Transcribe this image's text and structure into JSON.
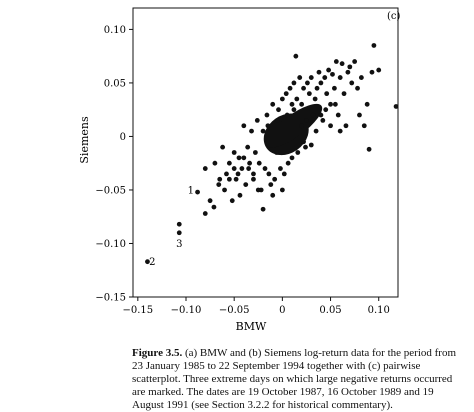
{
  "chart_data": {
    "type": "scatter",
    "panel_label": "(c)",
    "xlabel": "BMW",
    "ylabel": "Siemens",
    "xlim": [
      -0.155,
      0.12
    ],
    "ylim": [
      -0.15,
      0.12
    ],
    "xticks": [
      -0.15,
      -0.1,
      -0.05,
      0,
      0.05,
      0.1
    ],
    "xtick_labels": [
      "−0.15",
      "−0.10",
      "−0.05",
      "0",
      "0.05",
      "0.10"
    ],
    "yticks": [
      -0.15,
      -0.1,
      -0.05,
      0,
      0.05,
      0.1
    ],
    "ytick_labels": [
      "−0.15",
      "−0.10",
      "−0.05",
      "0",
      "0.05",
      "0.10"
    ],
    "grid": false,
    "annotations": [
      {
        "label": "1",
        "x": -0.088,
        "y": -0.052,
        "text_x": -0.095,
        "text_y": -0.05
      },
      {
        "label": "2",
        "x": -0.14,
        "y": -0.117,
        "text_x": -0.135,
        "text_y": -0.117
      },
      {
        "label": "3",
        "x": -0.107,
        "y": -0.09,
        "text_x": -0.107,
        "text_y": -0.1
      }
    ],
    "points": [
      [
        -0.14,
        -0.117
      ],
      [
        -0.107,
        -0.082
      ],
      [
        -0.107,
        -0.09
      ],
      [
        -0.088,
        -0.052
      ],
      [
        -0.08,
        -0.072
      ],
      [
        -0.08,
        -0.03
      ],
      [
        -0.075,
        -0.06
      ],
      [
        -0.071,
        -0.066
      ],
      [
        -0.07,
        -0.025
      ],
      [
        -0.066,
        -0.045
      ],
      [
        -0.062,
        -0.01
      ],
      [
        -0.06,
        -0.05
      ],
      [
        -0.058,
        -0.035
      ],
      [
        -0.055,
        -0.025
      ],
      [
        -0.052,
        -0.06
      ],
      [
        -0.05,
        -0.015
      ],
      [
        -0.048,
        -0.04
      ],
      [
        -0.046,
        -0.035
      ],
      [
        -0.044,
        -0.055
      ],
      [
        -0.042,
        -0.03
      ],
      [
        -0.04,
        0.01
      ],
      [
        -0.04,
        -0.02
      ],
      [
        -0.038,
        -0.045
      ],
      [
        -0.036,
        -0.01
      ],
      [
        -0.034,
        -0.025
      ],
      [
        -0.032,
        0.005
      ],
      [
        -0.03,
        -0.035
      ],
      [
        -0.03,
        -0.04
      ],
      [
        -0.028,
        -0.015
      ],
      [
        -0.026,
        0.015
      ],
      [
        -0.024,
        -0.025
      ],
      [
        -0.022,
        -0.05
      ],
      [
        -0.02,
        -0.068
      ],
      [
        -0.018,
        -0.03
      ],
      [
        -0.016,
        0.02
      ],
      [
        -0.014,
        -0.035
      ],
      [
        -0.012,
        -0.045
      ],
      [
        -0.01,
        0.03
      ],
      [
        -0.008,
        -0.04
      ],
      [
        -0.006,
        -0.015
      ],
      [
        -0.004,
        0.025
      ],
      [
        -0.002,
        -0.03
      ],
      [
        0.0,
        0.035
      ],
      [
        0.002,
        -0.035
      ],
      [
        0.004,
        0.04
      ],
      [
        0.006,
        -0.025
      ],
      [
        0.008,
        0.045
      ],
      [
        0.01,
        -0.02
      ],
      [
        0.012,
        0.05
      ],
      [
        0.014,
        0.075
      ],
      [
        0.016,
        -0.015
      ],
      [
        0.018,
        0.055
      ],
      [
        0.02,
        0.03
      ],
      [
        0.022,
        0.045
      ],
      [
        0.024,
        -0.01
      ],
      [
        0.026,
        0.05
      ],
      [
        0.028,
        0.04
      ],
      [
        0.03,
        0.055
      ],
      [
        0.032,
        0.02
      ],
      [
        0.034,
        0.035
      ],
      [
        0.036,
        0.045
      ],
      [
        0.038,
        0.06
      ],
      [
        0.04,
        0.05
      ],
      [
        0.042,
        0.015
      ],
      [
        0.044,
        0.055
      ],
      [
        0.046,
        0.04
      ],
      [
        0.048,
        0.062
      ],
      [
        0.05,
        0.03
      ],
      [
        0.052,
        0.058
      ],
      [
        0.054,
        0.045
      ],
      [
        0.056,
        0.07
      ],
      [
        0.058,
        0.02
      ],
      [
        0.06,
        0.055
      ],
      [
        0.062,
        0.068
      ],
      [
        0.064,
        0.04
      ],
      [
        0.066,
        0.01
      ],
      [
        0.068,
        0.06
      ],
      [
        0.07,
        0.065
      ],
      [
        0.072,
        0.05
      ],
      [
        0.075,
        0.07
      ],
      [
        0.078,
        0.045
      ],
      [
        0.08,
        0.02
      ],
      [
        0.082,
        0.055
      ],
      [
        0.085,
        0.01
      ],
      [
        0.088,
        0.03
      ],
      [
        0.09,
        -0.012
      ],
      [
        0.093,
        0.06
      ],
      [
        0.095,
        0.085
      ],
      [
        0.1,
        0.062
      ],
      [
        0.118,
        0.028
      ],
      [
        0.04,
        0.02
      ],
      [
        0.05,
        0.01
      ],
      [
        0.06,
        0.005
      ],
      [
        0.03,
        -0.008
      ],
      [
        0.035,
        0.005
      ],
      [
        0.045,
        0.025
      ],
      [
        0.055,
        0.03
      ],
      [
        0.025,
        0.015
      ],
      [
        -0.025,
        -0.05
      ],
      [
        -0.035,
        -0.03
      ],
      [
        -0.045,
        -0.02
      ],
      [
        -0.05,
        -0.03
      ],
      [
        -0.055,
        -0.04
      ],
      [
        -0.065,
        -0.04
      ],
      [
        -0.02,
        0.005
      ],
      [
        -0.015,
        0.01
      ],
      [
        -0.01,
        -0.055
      ],
      [
        0.0,
        -0.05
      ],
      [
        0.005,
        0.02
      ],
      [
        0.01,
        0.03
      ],
      [
        0.015,
        0.035
      ],
      [
        -0.005,
        0.015
      ],
      [
        0.02,
        0.01
      ],
      [
        0.012,
        0.025
      ],
      [
        0.022,
        -0.005
      ]
    ]
  },
  "caption": {
    "label": "Figure 3.5.",
    "text": "(a) BMW and (b) Siemens log-return data for the period from 23 January 1985 to 22 September 1994 together with (c) pairwise scatterplot. Three extreme days on which large negative returns occurred are marked. The dates are 19 October 1987, 16 October 1989 and 19 August 1991 (see Section 3.2.2 for historical commentary)."
  }
}
